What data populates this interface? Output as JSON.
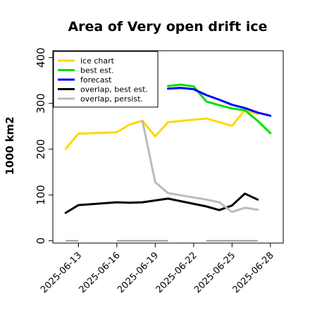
{
  "chart_data": {
    "type": "line",
    "title": "Area of Very open drift ice",
    "ylabel": "1000 km2",
    "xlabel": "",
    "ylim": [
      -5,
      415
    ],
    "yticks": [
      0,
      100,
      200,
      300,
      400
    ],
    "x_range": [
      "2025-06-11",
      "2025-06-29"
    ],
    "xticks": [
      "2025-06-13",
      "2025-06-16",
      "2025-06-19",
      "2025-06-22",
      "2025-06-25",
      "2025-06-28"
    ],
    "highlight_tick": "2025-06-19",
    "highlight_color": "#2e8b2e",
    "legend_position": "top-left",
    "series": [
      {
        "name": "ice chart",
        "color": "#ffd700",
        "width": 3,
        "points": [
          [
            "2025-06-12",
            201
          ],
          [
            "2025-06-13",
            234
          ],
          [
            "2025-06-16",
            237
          ],
          [
            "2025-06-17",
            254
          ],
          [
            "2025-06-18",
            262
          ],
          [
            "2025-06-19",
            228
          ],
          [
            "2025-06-20",
            259
          ],
          [
            "2025-06-23",
            267
          ],
          [
            "2025-06-25",
            251
          ],
          [
            "2025-06-26",
            285
          ],
          [
            "2025-06-27",
            277
          ]
        ]
      },
      {
        "name": "best est.",
        "color": "#00e000",
        "width": 3,
        "points": [
          [
            "2025-06-20",
            338
          ],
          [
            "2025-06-21",
            341
          ],
          [
            "2025-06-22",
            337
          ],
          [
            "2025-06-23",
            304
          ],
          [
            "2025-06-24",
            296
          ],
          [
            "2025-06-25",
            289
          ],
          [
            "2025-06-26",
            285
          ],
          [
            "2025-06-27",
            262
          ],
          [
            "2025-06-28",
            235
          ]
        ]
      },
      {
        "name": "forecast",
        "color": "#0000ff",
        "width": 3,
        "points": [
          [
            "2025-06-20",
            332
          ],
          [
            "2025-06-21",
            334
          ],
          [
            "2025-06-22",
            331
          ],
          [
            "2025-06-23",
            318
          ],
          [
            "2025-06-24",
            308
          ],
          [
            "2025-06-25",
            297
          ],
          [
            "2025-06-26",
            290
          ],
          [
            "2025-06-27",
            280
          ],
          [
            "2025-06-28",
            273
          ]
        ]
      },
      {
        "name": "overlap, best est.",
        "color": "#000000",
        "width": 3,
        "points": [
          [
            "2025-06-12",
            61
          ],
          [
            "2025-06-13",
            78
          ],
          [
            "2025-06-16",
            84
          ],
          [
            "2025-06-17",
            83
          ],
          [
            "2025-06-18",
            84
          ],
          [
            "2025-06-20",
            92
          ],
          [
            "2025-06-23",
            75
          ],
          [
            "2025-06-24",
            67
          ],
          [
            "2025-06-25",
            77
          ],
          [
            "2025-06-26",
            103
          ],
          [
            "2025-06-27",
            90
          ]
        ]
      },
      {
        "name": "overlap, persist.",
        "color": "#bbbbbb",
        "width": 3,
        "points": [
          [
            "2025-06-18",
            262
          ],
          [
            "2025-06-19",
            128
          ],
          [
            "2025-06-20",
            104
          ],
          [
            "2025-06-23",
            90
          ],
          [
            "2025-06-24",
            84
          ],
          [
            "2025-06-25",
            63
          ],
          [
            "2025-06-26",
            72
          ],
          [
            "2025-06-27",
            68
          ]
        ]
      }
    ],
    "baseline_segments": {
      "color": "#999999",
      "value": 0,
      "ranges": [
        [
          "2025-06-12",
          "2025-06-13"
        ],
        [
          "2025-06-16",
          "2025-06-20"
        ],
        [
          "2025-06-23",
          "2025-06-27"
        ]
      ]
    }
  }
}
